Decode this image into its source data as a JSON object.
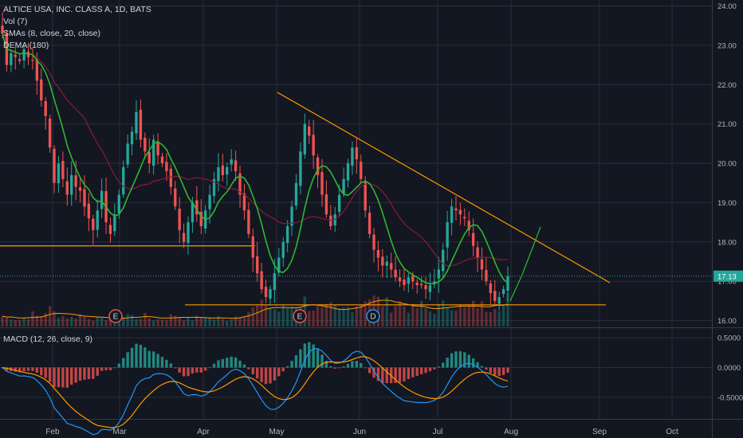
{
  "header": {
    "symbol": "ALTICE USA, INC. CLASS A, 1D, BATS",
    "vol": "Vol (7)",
    "smas": "SMAs (8, close, 20, close)",
    "dema": "DEMA (180)",
    "macd": "MACD (12, 26, close, 9)"
  },
  "colors": {
    "background": "#131722",
    "up": "#26a69a",
    "down": "#ef5350",
    "sma_fast": "#2eb82e",
    "sma_slow": "#8b1a3a",
    "trendline": "#ff9800",
    "macd": "#2196f3",
    "signal": "#ff9800",
    "grid": "#2a2e39",
    "axis_text": "#b2b5be"
  },
  "chart_data": {
    "type": "candlestick",
    "x_axis_labels": [
      "Feb",
      "Mar",
      "Apr",
      "May",
      "Jun",
      "Jul",
      "Aug",
      "Sep",
      "Oct"
    ],
    "price_axis": {
      "ticks": [
        "24.00",
        "23.00",
        "22.00",
        "21.00",
        "20.00",
        "19.00",
        "18.00",
        "17.00",
        "16.00"
      ],
      "ylim": [
        15.85,
        24.05
      ]
    },
    "macd_axis": {
      "ticks": [
        "0.5000",
        "0.0000",
        "-0.5000"
      ],
      "ylim": [
        -0.85,
        0.65
      ]
    },
    "last_price": "17.13",
    "closes": [
      23.3,
      22.5,
      22.8,
      22.7,
      22.6,
      22.9,
      22.7,
      22.6,
      22.1,
      21.6,
      21.2,
      20.4,
      19.5,
      20.0,
      19.6,
      19.2,
      19.7,
      19.4,
      19.3,
      18.9,
      18.6,
      18.3,
      18.8,
      19.3,
      18.5,
      18.2,
      18.7,
      19.2,
      19.9,
      20.5,
      20.8,
      21.3,
      20.6,
      20.3,
      20.0,
      20.6,
      20.2,
      20.0,
      19.8,
      19.4,
      18.9,
      18.3,
      18.0,
      18.5,
      19.0,
      18.7,
      18.4,
      18.8,
      19.2,
      19.6,
      19.9,
      19.7,
      19.9,
      20.1,
      19.8,
      19.2,
      18.8,
      18.2,
      17.6,
      17.2,
      16.8,
      16.6,
      16.8,
      17.2,
      17.6,
      18.0,
      18.4,
      18.9,
      19.5,
      20.3,
      21.0,
      20.7,
      20.2,
      19.7,
      19.2,
      18.7,
      18.4,
      18.7,
      19.2,
      19.6,
      20.0,
      20.4,
      20.1,
      19.6,
      18.8,
      18.2,
      17.8,
      17.6,
      17.4,
      17.5,
      17.3,
      17.1,
      17.0,
      16.9,
      17.1,
      17.0,
      16.9,
      16.9,
      16.8,
      16.9,
      17.0,
      17.3,
      17.8,
      18.5,
      18.9,
      18.8,
      18.7,
      18.6,
      18.3,
      17.9,
      17.6,
      17.3,
      17.0,
      16.7,
      16.5,
      16.6,
      16.8,
      17.13
    ],
    "volume_profile": [
      0.3,
      0.25,
      0.28,
      0.22,
      0.2,
      0.25,
      0.3,
      0.35,
      0.3,
      0.32,
      0.45,
      0.5,
      0.4,
      0.35,
      0.3,
      0.28,
      0.25,
      0.3,
      0.35,
      0.3,
      0.28,
      0.25,
      0.22,
      0.2,
      0.25,
      0.22,
      0.2,
      0.25,
      0.3,
      0.35,
      0.3,
      0.25,
      0.28,
      0.3,
      0.25,
      0.22,
      0.2,
      0.22,
      0.25,
      0.3,
      0.35,
      0.3,
      0.25,
      0.2,
      0.22,
      0.25,
      0.28,
      0.3,
      0.25,
      0.22,
      0.25,
      0.2,
      0.22,
      0.25,
      0.3,
      0.35,
      0.4,
      0.45,
      0.5,
      0.55,
      0.6,
      0.7,
      0.55,
      0.5,
      0.45,
      0.5,
      0.55,
      0.6,
      0.65,
      0.7,
      0.75,
      0.6,
      0.55,
      0.5,
      0.45,
      0.5,
      0.55,
      0.5,
      0.45,
      0.5,
      0.55,
      0.6,
      0.65,
      0.7,
      0.9,
      0.85,
      0.8,
      0.75,
      0.7,
      0.65,
      0.6,
      0.65,
      0.7,
      0.6,
      0.55,
      0.5,
      0.55,
      0.6,
      0.5,
      0.45,
      0.5,
      0.55,
      0.6,
      0.65,
      0.7,
      0.6,
      0.55,
      0.5,
      0.55,
      0.6,
      0.65,
      0.6,
      0.55,
      0.6,
      0.7,
      0.65,
      0.6,
      0.8
    ],
    "horizontal_levels": [
      {
        "name": "support-upper",
        "price": 17.9
      },
      {
        "name": "support-lower",
        "price": 16.4
      }
    ],
    "earnings_markers": [
      "E",
      "E",
      "D"
    ]
  }
}
